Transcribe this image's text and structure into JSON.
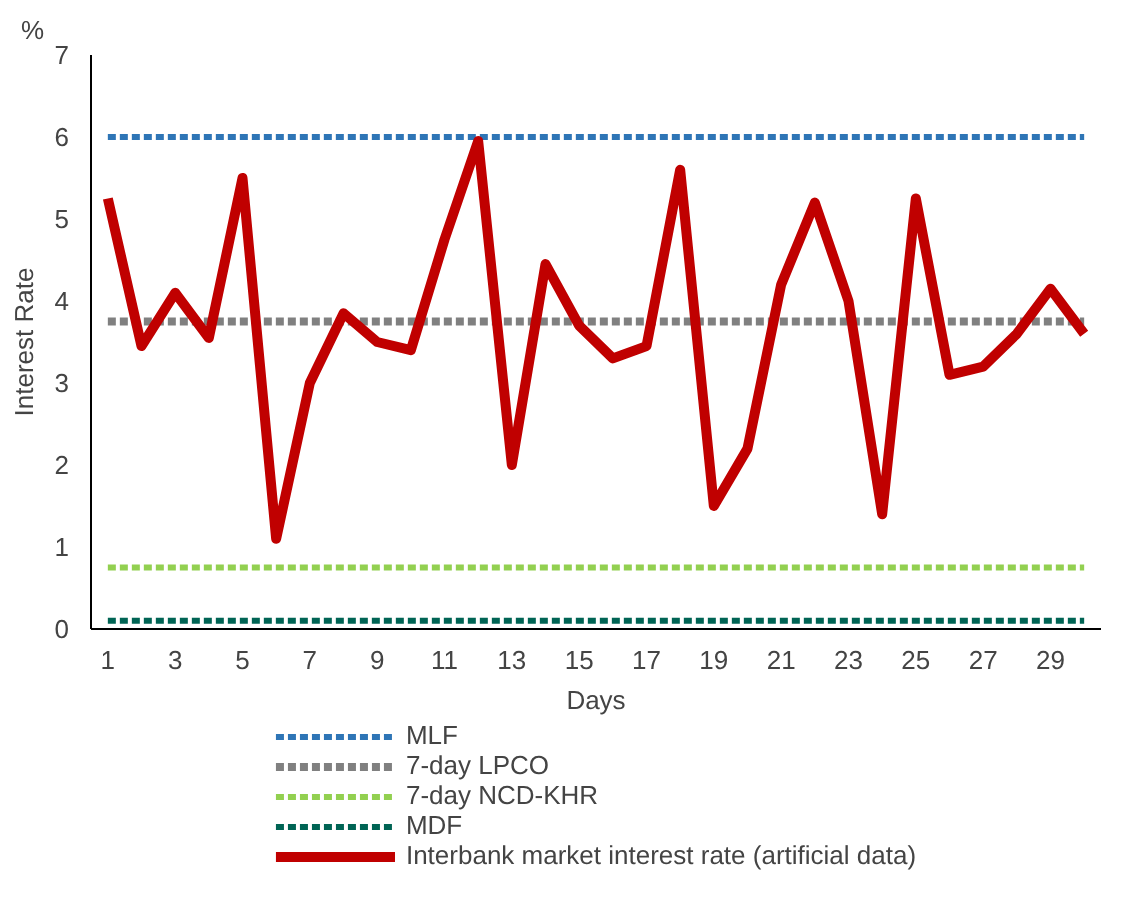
{
  "chart_data": {
    "type": "line",
    "xlabel": "Days",
    "ylabel": "Interest Rate",
    "annotations": [
      "%"
    ],
    "x": [
      1,
      2,
      3,
      4,
      5,
      6,
      7,
      8,
      9,
      10,
      11,
      12,
      13,
      14,
      15,
      16,
      17,
      18,
      19,
      20,
      21,
      22,
      23,
      24,
      25,
      26,
      27,
      28,
      29,
      30
    ],
    "xlim": [
      0.5,
      30.5
    ],
    "xticks": [
      1,
      3,
      5,
      7,
      9,
      11,
      13,
      15,
      17,
      19,
      21,
      23,
      25,
      27,
      29
    ],
    "ylim": [
      0,
      7
    ],
    "yticks": [
      0,
      1,
      2,
      3,
      4,
      5,
      6,
      7
    ],
    "grid": false,
    "legend": "bottom",
    "marker": "none",
    "series": [
      {
        "name": "MLF",
        "color": "#2e75b6",
        "line_style": "dashed",
        "values": [
          6,
          6,
          6,
          6,
          6,
          6,
          6,
          6,
          6,
          6,
          6,
          6,
          6,
          6,
          6,
          6,
          6,
          6,
          6,
          6,
          6,
          6,
          6,
          6,
          6,
          6,
          6,
          6,
          6,
          6
        ]
      },
      {
        "name": "7-day LPCO",
        "color": "#808080",
        "line_style": "dashed",
        "values": [
          3.75,
          3.75,
          3.75,
          3.75,
          3.75,
          3.75,
          3.75,
          3.75,
          3.75,
          3.75,
          3.75,
          3.75,
          3.75,
          3.75,
          3.75,
          3.75,
          3.75,
          3.75,
          3.75,
          3.75,
          3.75,
          3.75,
          3.75,
          3.75,
          3.75,
          3.75,
          3.75,
          3.75,
          3.75,
          3.75
        ]
      },
      {
        "name": "7-day NCD-KHR",
        "color": "#92d050",
        "line_style": "dashed",
        "values": [
          0.75,
          0.75,
          0.75,
          0.75,
          0.75,
          0.75,
          0.75,
          0.75,
          0.75,
          0.75,
          0.75,
          0.75,
          0.75,
          0.75,
          0.75,
          0.75,
          0.75,
          0.75,
          0.75,
          0.75,
          0.75,
          0.75,
          0.75,
          0.75,
          0.75,
          0.75,
          0.75,
          0.75,
          0.75,
          0.75
        ]
      },
      {
        "name": "MDF",
        "color": "#006454",
        "line_style": "dashed",
        "values": [
          0.1,
          0.1,
          0.1,
          0.1,
          0.1,
          0.1,
          0.1,
          0.1,
          0.1,
          0.1,
          0.1,
          0.1,
          0.1,
          0.1,
          0.1,
          0.1,
          0.1,
          0.1,
          0.1,
          0.1,
          0.1,
          0.1,
          0.1,
          0.1,
          0.1,
          0.1,
          0.1,
          0.1,
          0.1,
          0.1
        ]
      },
      {
        "name": "Interbank market interest rate (artificial data)",
        "color": "#c00000",
        "line_style": "solid",
        "values": [
          5.25,
          3.45,
          4.1,
          3.55,
          5.5,
          1.1,
          3.0,
          3.85,
          3.5,
          3.4,
          4.75,
          5.95,
          2.0,
          4.45,
          3.7,
          3.3,
          3.45,
          5.6,
          1.5,
          2.2,
          4.2,
          5.2,
          4.0,
          1.4,
          5.25,
          3.1,
          3.2,
          3.6,
          4.15,
          3.6
        ]
      }
    ]
  }
}
